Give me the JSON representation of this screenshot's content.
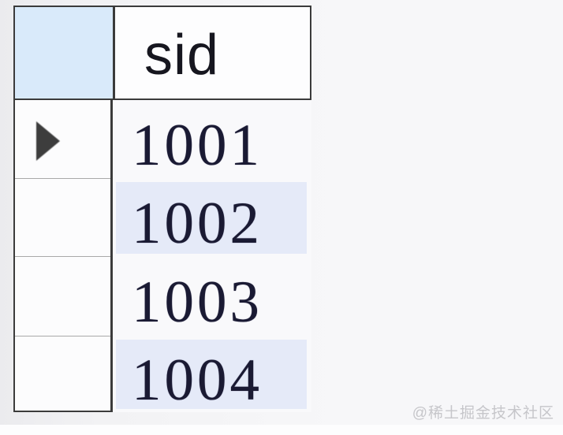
{
  "grid": {
    "columns": [
      {
        "label": "sid"
      }
    ],
    "rows": [
      {
        "sid": "1001",
        "is_current": true,
        "striped": false
      },
      {
        "sid": "1002",
        "is_current": false,
        "striped": true
      },
      {
        "sid": "1003",
        "is_current": false,
        "striped": false
      },
      {
        "sid": "1004",
        "is_current": false,
        "striped": true
      }
    ],
    "current_row_index": 0
  },
  "icons": {
    "row_indicator": "right-pointing-triangle"
  },
  "colors": {
    "header_selector_bg": "#d9eafa",
    "header_cell_bg": "#fdfdfe",
    "rowheader_bg": "#fcfcfd",
    "datacol_bg": "#f9f9fb",
    "alt_row_bg": "#e5eaf8",
    "border_dark": "#3b3b3b",
    "row_separator": "#a9a9a9",
    "cell_text": "#1a1a33",
    "header_text": "#16161f",
    "indicator": "#3d3d3d",
    "watermark_color": "#c6c6ca"
  },
  "watermark": {
    "text": "@稀土掘金技术社区"
  }
}
